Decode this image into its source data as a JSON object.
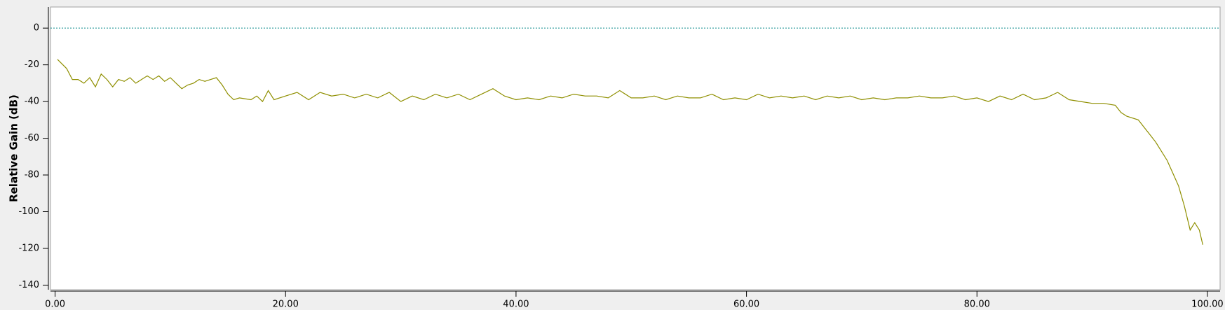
{
  "chart_data": {
    "type": "line",
    "y_label": "Relative Gain (dB)",
    "xlim": [
      -0.4,
      101.1
    ],
    "ylim": [
      -142.5,
      11.5
    ],
    "xticks": [
      {
        "value": 0,
        "label": "0.00"
      },
      {
        "value": 20,
        "label": "20.00"
      },
      {
        "value": 40,
        "label": "40.00"
      },
      {
        "value": 60,
        "label": "60.00"
      },
      {
        "value": 80,
        "label": "80.00"
      },
      {
        "value": 100,
        "label": "100.00"
      }
    ],
    "yticks": [
      0,
      -20,
      -40,
      -60,
      -80,
      -100,
      -120,
      -140
    ],
    "reference_line": {
      "value": 0,
      "color": "#0a8a8a"
    },
    "x": [
      0.2,
      1,
      1.5,
      2,
      2.5,
      3,
      3.5,
      4,
      4.5,
      5,
      5.5,
      6,
      6.5,
      7,
      7.5,
      8,
      8.5,
      9,
      9.5,
      10,
      10.5,
      11,
      11.5,
      12,
      12.5,
      13,
      13.5,
      14,
      14.5,
      15,
      15.5,
      16,
      17,
      17.5,
      18,
      18.5,
      19,
      20,
      21,
      22,
      23,
      24,
      25,
      26,
      27,
      28,
      29,
      30,
      31,
      32,
      33,
      34,
      35,
      36,
      37,
      38,
      39,
      40,
      41,
      42,
      43,
      44,
      45,
      46,
      47,
      48,
      49,
      50,
      51,
      52,
      53,
      54,
      55,
      56,
      57,
      58,
      59,
      60,
      61,
      62,
      63,
      64,
      65,
      66,
      67,
      68,
      69,
      70,
      71,
      72,
      73,
      74,
      75,
      76,
      77,
      78,
      79,
      80,
      81,
      82,
      83,
      84,
      85,
      86,
      87,
      88,
      89,
      90,
      91,
      92,
      92.5,
      93,
      94,
      94.5,
      95,
      95.5,
      96,
      96.5,
      97,
      97.5,
      98,
      98.5,
      98.9,
      99.3,
      99.6
    ],
    "series": [
      {
        "color": "#8f8f00",
        "values": [
          -17,
          -22,
          -28,
          -28,
          -30,
          -27,
          -32,
          -25,
          -28,
          -32,
          -28,
          -29,
          -27,
          -30,
          -28,
          -26,
          -28,
          -26,
          -29,
          -27,
          -30,
          -33,
          -31,
          -30,
          -28,
          -29,
          -28,
          -27,
          -31,
          -36,
          -39,
          -38,
          -39,
          -37,
          -40,
          -34,
          -39,
          -37,
          -35,
          -39,
          -35,
          -37,
          -36,
          -38,
          -36,
          -38,
          -35,
          -40,
          -37,
          -39,
          -36,
          -38,
          -36,
          -39,
          -36,
          -33,
          -37,
          -39,
          -38,
          -39,
          -37,
          -38,
          -36,
          -37,
          -37,
          -38,
          -34,
          -38,
          -38,
          -37,
          -39,
          -37,
          -38,
          -38,
          -36,
          -39,
          -38,
          -39,
          -36,
          -38,
          -37,
          -38,
          -37,
          -39,
          -37,
          -38,
          -37,
          -39,
          -38,
          -39,
          -38,
          -38,
          -37,
          -38,
          -38,
          -37,
          -39,
          -38,
          -40,
          -37,
          -39,
          -36,
          -39,
          -38,
          -35,
          -39,
          -40,
          -41,
          -41,
          -42,
          -46,
          -48,
          -50,
          -54,
          -58,
          -62,
          -67,
          -72,
          -79,
          -86,
          -97,
          -110,
          -106,
          -110,
          -118
        ]
      }
    ]
  }
}
